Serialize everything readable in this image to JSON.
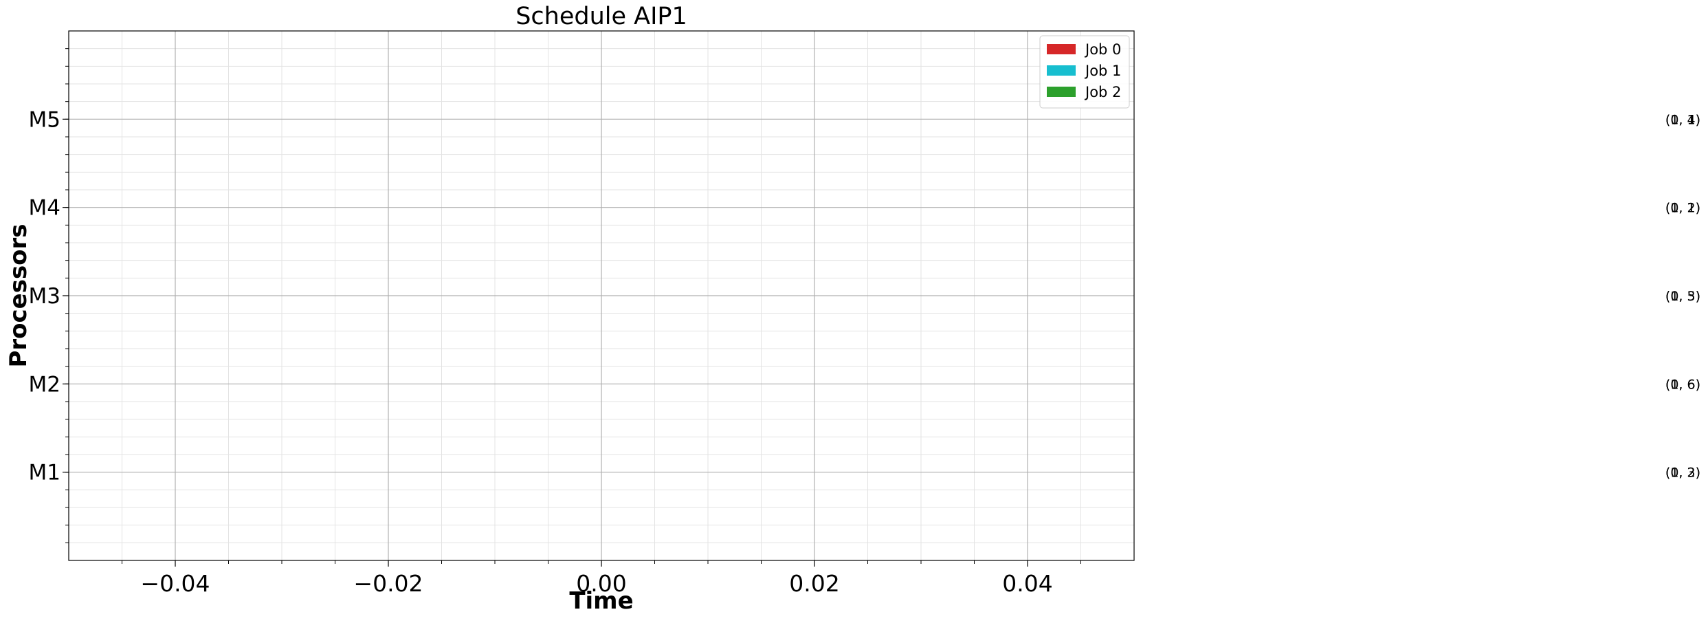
{
  "chart_data": {
    "type": "gantt",
    "title": "Schedule AIP1",
    "xlabel": "Time",
    "ylabel": "Processors",
    "xlim": [
      -0.05,
      0.05
    ],
    "xticks": [
      -0.04,
      -0.02,
      0.0,
      0.02,
      0.04
    ],
    "xtick_labels": [
      "−0.04",
      "−0.02",
      "0.00",
      "0.02",
      "0.04"
    ],
    "x_minor_step": 0.005,
    "ylim": [
      0,
      6
    ],
    "yticks": [
      1,
      2,
      3,
      4,
      5
    ],
    "ytick_labels": [
      "M1",
      "M2",
      "M3",
      "M4",
      "M5"
    ],
    "y_minor_step": 0.2,
    "grid": true,
    "legend_position": "top-right",
    "series": [
      {
        "name": "Job 0",
        "color": "#d62728",
        "values": []
      },
      {
        "name": "Job 1",
        "color": "#17becf",
        "values": []
      },
      {
        "name": "Job 2",
        "color": "#2ca02c",
        "values": []
      }
    ],
    "annotations": [
      {
        "y": 5,
        "labels": [
          "(0, 4)",
          "(1, 1)"
        ]
      },
      {
        "y": 4,
        "labels": [
          "(0, 2)",
          "(1, 1)"
        ]
      },
      {
        "y": 3,
        "labels": [
          "(0, 3)",
          "(1, 5)"
        ]
      },
      {
        "y": 2,
        "labels": [
          "(0, 6)",
          "(1, 6)"
        ]
      },
      {
        "y": 1,
        "labels": [
          "(0, 2)",
          "(1, 3)"
        ]
      }
    ]
  }
}
